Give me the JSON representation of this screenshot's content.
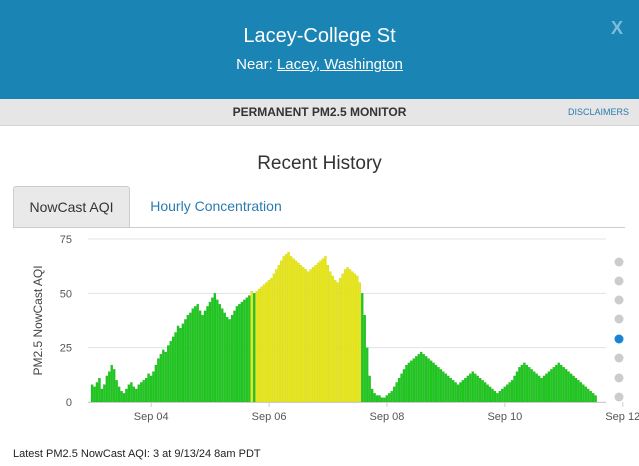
{
  "header": {
    "title": "Lacey-College St",
    "near_label": "Near:",
    "near_link": "Lacey, Washington",
    "close_label": "X"
  },
  "subbar": {
    "monitor_type": "PERMANENT PM2.5 MONITOR",
    "disclaimers": "DISCLAIMERS"
  },
  "section_title": "Recent History",
  "tabs": [
    {
      "label": "NowCast AQI",
      "active": true
    },
    {
      "label": "Hourly Concentration",
      "active": false
    }
  ],
  "footer": "Latest PM2.5 NowCast AQI: 3 at 9/13/24 8am PDT",
  "colors": {
    "good": "#1ec71e",
    "moderate": "#e6e619",
    "good_edge": "#15a315",
    "moderate_edge": "#c9c90f"
  },
  "chart_data": {
    "type": "bar",
    "ylabel": "PM2.5 NowCast AQI",
    "ylim": [
      0,
      75
    ],
    "yticks": [
      0,
      25,
      50,
      75
    ],
    "xticks": [
      "Sep 04",
      "Sep 06",
      "Sep 08",
      "Sep 10",
      "Sep 12"
    ],
    "x_start_label": "Sep 03 12am",
    "interval_hours": 1,
    "values": [
      8,
      7,
      9,
      11,
      6,
      8,
      12,
      14,
      17,
      15,
      10,
      7,
      5,
      4,
      6,
      8,
      9,
      7,
      6,
      8,
      9,
      10,
      11,
      13,
      12,
      14,
      17,
      20,
      22,
      24,
      23,
      26,
      28,
      30,
      32,
      35,
      34,
      36,
      38,
      40,
      41,
      43,
      44,
      45,
      42,
      40,
      42,
      44,
      46,
      48,
      50,
      47,
      45,
      43,
      41,
      39,
      38,
      40,
      42,
      44,
      45,
      46,
      47,
      48,
      49,
      51,
      50,
      51,
      52,
      53,
      54,
      55,
      56,
      57,
      59,
      61,
      63,
      65,
      67,
      68,
      69,
      67,
      66,
      65,
      64,
      63,
      62,
      61,
      60,
      61,
      62,
      63,
      64,
      65,
      66,
      67,
      63,
      60,
      58,
      56,
      55,
      57,
      59,
      61,
      62,
      61,
      60,
      59,
      58,
      55,
      50,
      40,
      25,
      12,
      6,
      4,
      3,
      3,
      2,
      2,
      3,
      4,
      5,
      7,
      9,
      11,
      13,
      15,
      17,
      18,
      19,
      20,
      21,
      22,
      23,
      22,
      21,
      20,
      19,
      18,
      17,
      16,
      15,
      14,
      13,
      12,
      11,
      10,
      9,
      8,
      9,
      10,
      11,
      12,
      13,
      14,
      13,
      12,
      11,
      10,
      9,
      8,
      7,
      6,
      5,
      4,
      5,
      6,
      7,
      8,
      9,
      10,
      12,
      14,
      16,
      17,
      18,
      17,
      16,
      15,
      14,
      13,
      12,
      11,
      12,
      13,
      14,
      15,
      16,
      17,
      18,
      17,
      16,
      15,
      14,
      13,
      12,
      11,
      10,
      9,
      8,
      7,
      6,
      5,
      4,
      3
    ]
  }
}
